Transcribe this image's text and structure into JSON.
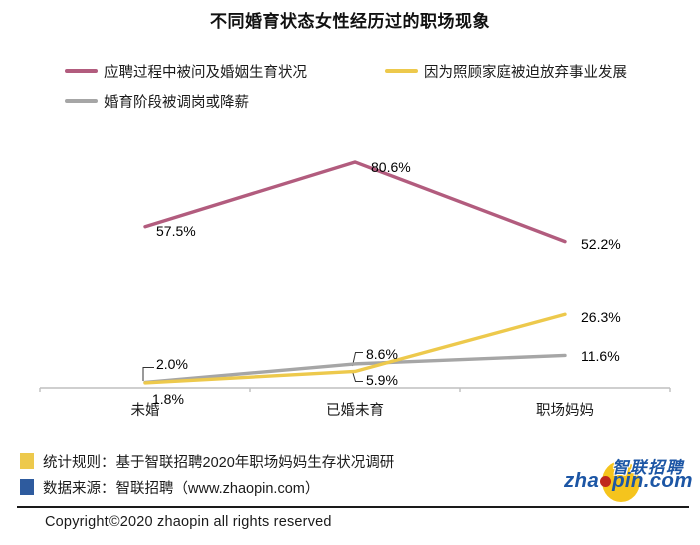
{
  "title": "不同婚育状态女性经历过的职场现象",
  "legend": [
    {
      "label": "应聘过程中被问及婚姻生育状况",
      "color": "#b25c7e"
    },
    {
      "label": "因为照顾家庭被迫放弃事业发展",
      "color": "#edc94c"
    },
    {
      "label": "婚育阶段被调岗或降薪",
      "color": "#a6a6a6"
    }
  ],
  "chart_data": {
    "type": "line",
    "title": "不同婚育状态女性经历过的职场现象",
    "categories": [
      "未婚",
      "已婚未育",
      "职场妈妈"
    ],
    "series": [
      {
        "name": "应聘过程中被问及婚姻生育状况",
        "color": "#b25c7e",
        "values": [
          57.5,
          80.6,
          52.2
        ],
        "labels": [
          "57.5%",
          "80.6%",
          "52.2%"
        ]
      },
      {
        "name": "因为照顾家庭被迫放弃事业发展",
        "color": "#edc94c",
        "values": [
          1.8,
          5.9,
          26.3
        ],
        "labels": [
          "1.8%",
          "5.9%",
          "26.3%"
        ]
      },
      {
        "name": "婚育阶段被调岗或降薪",
        "color": "#a6a6a6",
        "values": [
          2.0,
          8.6,
          11.6
        ],
        "labels": [
          "2.0%",
          "8.6%",
          "11.6%"
        ]
      }
    ],
    "value_suffix": "%",
    "ylim": [
      0,
      88
    ],
    "grid": false,
    "legend_position": "top-left",
    "axis_color": "#bfbfbf"
  },
  "footer": {
    "notes": [
      {
        "swatch_color": "#edc94c",
        "text": "统计规则：基于智联招聘2020年职场妈妈生存状况调研"
      },
      {
        "swatch_color": "#2e5b9e",
        "text": "数据来源：智联招聘（www.zhaopin.com）"
      }
    ],
    "copyright": "Copyright©2020  zhaopin all rights reserved"
  },
  "logo": {
    "cn": "智联招聘",
    "en_pre": "zha",
    "en_post": "pin.com",
    "blue": "#1c56a5",
    "yellow": "#f5c41d",
    "red": "#c0271d"
  }
}
